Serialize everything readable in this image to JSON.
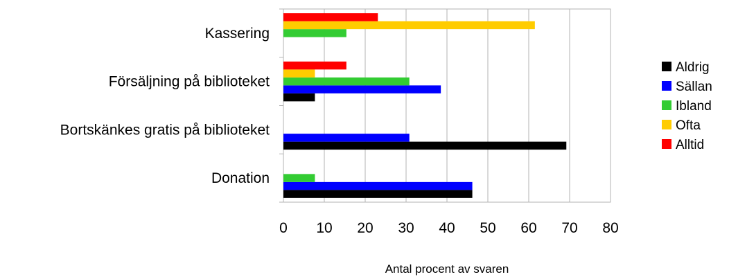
{
  "chart_data": {
    "type": "bar",
    "orientation": "horizontal",
    "categories": [
      "Donation",
      "Bortskänkes gratis på biblioteket",
      "Försäljning på biblioteket",
      "Kassering"
    ],
    "series": [
      {
        "name": "Aldrig",
        "color": "#000000",
        "values": [
          46.2,
          69.2,
          7.7,
          0
        ]
      },
      {
        "name": "Sällan",
        "color": "#0000ff",
        "values": [
          46.2,
          30.8,
          38.5,
          0
        ]
      },
      {
        "name": "Ibland",
        "color": "#33cc33",
        "values": [
          7.7,
          0,
          30.8,
          15.4
        ]
      },
      {
        "name": "Ofta",
        "color": "#ffcc00",
        "values": [
          0,
          0,
          7.7,
          61.5
        ]
      },
      {
        "name": "Alltid",
        "color": "#ff0000",
        "values": [
          0,
          0,
          15.4,
          23.1
        ]
      }
    ],
    "xlabel": "Antal procent av svaren",
    "ylabel": "",
    "xlim": [
      0,
      80
    ],
    "xticks": [
      "0",
      "10",
      "20",
      "30",
      "40",
      "50",
      "60",
      "70",
      "80"
    ],
    "grid": "vertical",
    "legend_position": "right"
  }
}
